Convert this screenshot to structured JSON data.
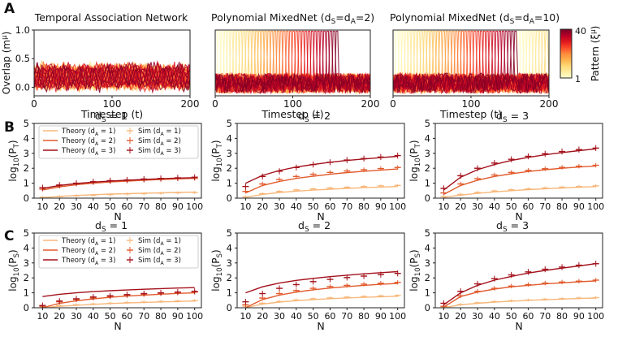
{
  "colors": {
    "d1": "#f7b77a",
    "d2": "#e25a2c",
    "d3": "#a3111b",
    "axis": "#222222",
    "cmap": [
      "#ffffcc",
      "#ffeda0",
      "#fed976",
      "#feb24c",
      "#fd8d3c",
      "#fc4e2a",
      "#e31a1c",
      "#bd0026",
      "#800026"
    ]
  },
  "panel_letters": [
    "A",
    "B",
    "C"
  ],
  "chart_data": [
    {
      "id": "A1",
      "type": "line",
      "title": "Temporal Association Network",
      "xlabel": "Timestep (t)",
      "ylabel": "Overlap (m^μ)",
      "xlim": [
        0,
        200
      ],
      "ylim": [
        -0.15,
        1.0
      ],
      "xticks": [
        "0",
        "100",
        "200"
      ],
      "yticks": [
        "0.0",
        "0.5",
        "1.0"
      ],
      "ylabel_parts": [
        "Overlap (m",
        "μ",
        ")"
      ],
      "n_patterns": 40,
      "behavior": "noisy overlaps between -0.05 and 0.45 for all patterns"
    },
    {
      "id": "A2",
      "type": "line",
      "title_parts": [
        "Polynomial MixedNet (d",
        "S",
        "=d",
        "A",
        "=2)"
      ],
      "xlabel": "Timestep (t)",
      "xlim": [
        0,
        200
      ],
      "ylim": [
        -0.15,
        1.0
      ],
      "xticks": [
        "0",
        "100",
        "200"
      ],
      "n_patterns": 40,
      "period": 4,
      "sequence_end": 160,
      "behavior": "patterns recalled sequentially with overlap near 1 until t≈160"
    },
    {
      "id": "A3",
      "type": "line",
      "title_parts": [
        "Polynomial MixedNet (d",
        "S",
        "=d",
        "A",
        "=10)"
      ],
      "xlabel": "Timestep (t)",
      "xlim": [
        0,
        200
      ],
      "ylim": [
        -0.15,
        1.0
      ],
      "xticks": [
        "0",
        "100",
        "200"
      ],
      "n_patterns": 40,
      "period": 4,
      "sequence_end": 200,
      "behavior": "patterns recalled sequentially with overlap near 1 over whole run"
    },
    {
      "id": "colorbar",
      "type": "heatmap",
      "label_parts": [
        "Pattern (ξ",
        "μ",
        ")"
      ],
      "range": [
        1,
        40
      ],
      "ticks": [
        "40",
        "1"
      ]
    },
    {
      "id": "B1",
      "type": "line",
      "title_parts": [
        "d",
        "S",
        " = 1"
      ],
      "ylabel_parts": [
        "log",
        "10",
        "(P",
        "T",
        ")"
      ],
      "xlabel": "N",
      "x": [
        10,
        20,
        30,
        40,
        50,
        60,
        70,
        80,
        90,
        100
      ],
      "xlim": [
        5,
        104
      ],
      "ylim": [
        0,
        5
      ],
      "yticks": [
        "0",
        "1",
        "2",
        "3",
        "4",
        "5"
      ],
      "legend_theory": [
        "Theory (d",
        "A",
        " = 1)",
        "Theory (d",
        "A",
        " = 2)",
        "Theory (d",
        "A",
        " = 3)"
      ],
      "legend_sim": [
        "Sim (d",
        "A",
        " = 1)",
        "Sim (d",
        "A",
        " = 2)",
        "Sim (d",
        "A",
        " = 3)"
      ],
      "series": [
        {
          "name": "dA=1",
          "theory": [
            0.03,
            0.12,
            0.18,
            0.23,
            0.27,
            0.3,
            0.33,
            0.36,
            0.38,
            0.4
          ],
          "sim": [
            0.05,
            0.1,
            0.16,
            0.2,
            0.24,
            0.28,
            0.3,
            0.33,
            0.36,
            0.38
          ]
        },
        {
          "name": "dA=2",
          "theory": [
            0.55,
            0.75,
            0.9,
            1.0,
            1.08,
            1.14,
            1.2,
            1.25,
            1.29,
            1.33
          ],
          "sim": [
            0.6,
            0.8,
            0.95,
            1.05,
            1.1,
            1.15,
            1.2,
            1.25,
            1.3,
            1.32
          ]
        },
        {
          "name": "dA=3",
          "theory": [
            0.65,
            0.85,
            0.98,
            1.07,
            1.14,
            1.2,
            1.25,
            1.3,
            1.34,
            1.37
          ],
          "sim": [
            0.7,
            0.88,
            1.0,
            1.1,
            1.17,
            1.22,
            1.28,
            1.32,
            1.36,
            1.4
          ]
        }
      ]
    },
    {
      "id": "B2",
      "type": "line",
      "title_parts": [
        "d",
        "S",
        " = 2"
      ],
      "ylabel_parts": [
        "log",
        "10",
        "(P",
        "T",
        ")"
      ],
      "xlabel": "N",
      "x": [
        10,
        20,
        30,
        40,
        50,
        60,
        70,
        80,
        90,
        100
      ],
      "xlim": [
        5,
        104
      ],
      "ylim": [
        0,
        5
      ],
      "yticks": [
        "0",
        "1",
        "2",
        "3",
        "4",
        "5"
      ],
      "series": [
        {
          "name": "dA=1",
          "theory": [
            0.05,
            0.25,
            0.38,
            0.47,
            0.54,
            0.6,
            0.65,
            0.7,
            0.74,
            0.78
          ],
          "sim": [
            0.08,
            0.3,
            0.45,
            0.55,
            0.62,
            0.68,
            0.73,
            0.78,
            0.82,
            0.85
          ]
        },
        {
          "name": "dA=2",
          "theory": [
            0.35,
            0.85,
            1.12,
            1.32,
            1.47,
            1.6,
            1.71,
            1.8,
            1.88,
            1.95
          ],
          "sim": [
            0.45,
            0.95,
            1.25,
            1.45,
            1.6,
            1.72,
            1.82,
            1.9,
            1.98,
            2.05
          ]
        },
        {
          "name": "dA=3",
          "theory": [
            1.0,
            1.52,
            1.85,
            2.08,
            2.25,
            2.4,
            2.52,
            2.62,
            2.71,
            2.8
          ],
          "sim": [
            0.78,
            1.45,
            1.8,
            2.05,
            2.25,
            2.4,
            2.55,
            2.65,
            2.75,
            2.85
          ]
        }
      ]
    },
    {
      "id": "B3",
      "type": "line",
      "title_parts": [
        "d",
        "S",
        " = 3"
      ],
      "ylabel_parts": [
        "log",
        "10",
        "(P",
        "T",
        ")"
      ],
      "xlabel": "N",
      "x": [
        10,
        20,
        30,
        40,
        50,
        60,
        70,
        80,
        90,
        100
      ],
      "xlim": [
        5,
        104
      ],
      "ylim": [
        0,
        5
      ],
      "yticks": [
        "0",
        "1",
        "2",
        "3",
        "4",
        "5"
      ],
      "series": [
        {
          "name": "dA=1",
          "theory": [
            0.05,
            0.2,
            0.32,
            0.42,
            0.5,
            0.57,
            0.63,
            0.68,
            0.73,
            0.77
          ],
          "sim": [
            0.1,
            0.25,
            0.38,
            0.48,
            0.56,
            0.62,
            0.68,
            0.73,
            0.78,
            0.82
          ]
        },
        {
          "name": "dA=2",
          "theory": [
            0.25,
            0.85,
            1.2,
            1.45,
            1.63,
            1.78,
            1.9,
            2.0,
            2.08,
            2.15
          ],
          "sim": [
            0.35,
            0.95,
            1.3,
            1.55,
            1.72,
            1.86,
            1.97,
            2.06,
            2.14,
            2.2
          ]
        },
        {
          "name": "dA=3",
          "theory": [
            0.55,
            1.4,
            1.9,
            2.25,
            2.52,
            2.73,
            2.9,
            3.05,
            3.18,
            3.3
          ],
          "sim": [
            0.65,
            1.5,
            2.0,
            2.35,
            2.6,
            2.8,
            2.97,
            3.12,
            3.25,
            3.35
          ]
        }
      ]
    },
    {
      "id": "C1",
      "type": "line",
      "title_parts": [
        "d",
        "S",
        " = 1"
      ],
      "ylabel_parts": [
        "log",
        "10",
        "(P",
        "S",
        ")"
      ],
      "xlabel": "N",
      "x": [
        10,
        20,
        30,
        40,
        50,
        60,
        70,
        80,
        90,
        100
      ],
      "xlim": [
        5,
        104
      ],
      "ylim": [
        0,
        5
      ],
      "yticks": [
        "0",
        "1",
        "2",
        "3",
        "4",
        "5"
      ],
      "legend_theory": [
        "Theory (d",
        "A",
        " = 1)",
        "Theory (d",
        "A",
        " = 2)",
        "Theory (d",
        "A",
        " = 3)"
      ],
      "legend_sim": [
        "Sim (d",
        "A",
        " = 1)",
        "Sim (d",
        "A",
        " = 2)",
        "Sim (d",
        "A",
        " = 3)"
      ],
      "series": [
        {
          "name": "dA=1",
          "theory": [
            0.0,
            0.1,
            0.17,
            0.23,
            0.28,
            0.32,
            0.36,
            0.39,
            0.42,
            0.45
          ],
          "sim": [
            0.05,
            0.15,
            0.2,
            0.25,
            0.3,
            0.35,
            0.38,
            0.42,
            0.45,
            0.48
          ]
        },
        {
          "name": "dA=2",
          "theory": [
            0.0,
            0.3,
            0.47,
            0.6,
            0.7,
            0.78,
            0.85,
            0.91,
            0.96,
            1.0
          ],
          "sim": [
            0.1,
            0.4,
            0.55,
            0.65,
            0.75,
            0.82,
            0.9,
            0.95,
            1.0,
            1.05
          ]
        },
        {
          "name": "dA=3",
          "theory": [
            0.75,
            0.9,
            1.0,
            1.08,
            1.14,
            1.19,
            1.24,
            1.28,
            1.32,
            1.35
          ],
          "sim": [
            0.15,
            0.45,
            0.6,
            0.72,
            0.8,
            0.88,
            0.95,
            1.0,
            1.05,
            1.1
          ]
        }
      ]
    },
    {
      "id": "C2",
      "type": "line",
      "title_parts": [
        "d",
        "S",
        " = 2"
      ],
      "ylabel_parts": [
        "log",
        "10",
        "(P",
        "S",
        ")"
      ],
      "xlabel": "N",
      "x": [
        10,
        20,
        30,
        40,
        50,
        60,
        70,
        80,
        90,
        100
      ],
      "xlim": [
        5,
        104
      ],
      "ylim": [
        0,
        5
      ],
      "yticks": [
        "0",
        "1",
        "2",
        "3",
        "4",
        "5"
      ],
      "series": [
        {
          "name": "dA=1",
          "theory": [
            0.0,
            0.25,
            0.38,
            0.48,
            0.55,
            0.61,
            0.66,
            0.7,
            0.74,
            0.77
          ],
          "sim": [
            0.1,
            0.3,
            0.42,
            0.52,
            0.6,
            0.66,
            0.71,
            0.75,
            0.79,
            0.82
          ]
        },
        {
          "name": "dA=2",
          "theory": [
            0.0,
            0.55,
            0.85,
            1.05,
            1.2,
            1.32,
            1.42,
            1.5,
            1.57,
            1.63
          ],
          "sim": [
            0.2,
            0.65,
            0.95,
            1.15,
            1.3,
            1.42,
            1.5,
            1.58,
            1.64,
            1.7
          ]
        },
        {
          "name": "dA=3",
          "theory": [
            1.0,
            1.4,
            1.65,
            1.83,
            1.97,
            2.08,
            2.18,
            2.27,
            2.35,
            2.42
          ],
          "sim": [
            0.4,
            0.95,
            1.3,
            1.55,
            1.75,
            1.9,
            2.02,
            2.12,
            2.22,
            2.3
          ]
        }
      ]
    },
    {
      "id": "C3",
      "type": "line",
      "title_parts": [
        "d",
        "S",
        " = 3"
      ],
      "ylabel_parts": [
        "log",
        "10",
        "(P",
        "S",
        ")"
      ],
      "xlabel": "N",
      "x": [
        10,
        20,
        30,
        40,
        50,
        60,
        70,
        80,
        90,
        100
      ],
      "xlim": [
        5,
        104
      ],
      "ylim": [
        0,
        5
      ],
      "yticks": [
        "0",
        "1",
        "2",
        "3",
        "4",
        "5"
      ],
      "series": [
        {
          "name": "dA=1",
          "theory": [
            0.0,
            0.2,
            0.3,
            0.38,
            0.44,
            0.5,
            0.54,
            0.58,
            0.62,
            0.65
          ],
          "sim": [
            0.05,
            0.22,
            0.33,
            0.41,
            0.47,
            0.52,
            0.57,
            0.61,
            0.65,
            0.68
          ]
        },
        {
          "name": "dA=2",
          "theory": [
            0.05,
            0.75,
            1.05,
            1.25,
            1.4,
            1.5,
            1.6,
            1.67,
            1.74,
            1.8
          ],
          "sim": [
            0.1,
            0.8,
            1.1,
            1.3,
            1.45,
            1.55,
            1.65,
            1.72,
            1.78,
            1.85
          ]
        },
        {
          "name": "dA=3",
          "theory": [
            0.2,
            1.0,
            1.5,
            1.85,
            2.1,
            2.32,
            2.5,
            2.65,
            2.8,
            2.95
          ],
          "sim": [
            0.3,
            1.1,
            1.6,
            1.95,
            2.2,
            2.4,
            2.58,
            2.72,
            2.85,
            2.95
          ]
        }
      ]
    }
  ]
}
